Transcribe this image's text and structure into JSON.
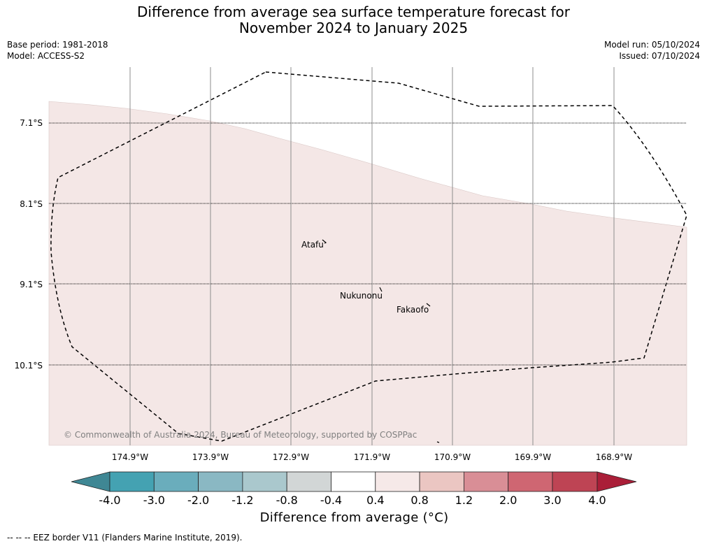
{
  "title": {
    "line1": "Difference from average sea surface temperature forecast for",
    "line2": "November 2024 to January 2025"
  },
  "meta_left": {
    "base_period": "Base period: 1981-2018",
    "model": "Model: ACCESS-S2"
  },
  "meta_right": {
    "model_run": "Model run: 05/10/2024",
    "issued": "Issued: 07/10/2024"
  },
  "map": {
    "latitudes": [
      "7.1°S",
      "8.1°S",
      "9.1°S",
      "10.1°S"
    ],
    "longitudes": [
      "174.9°W",
      "173.9°W",
      "172.9°W",
      "171.9°W",
      "170.9°W",
      "169.9°W",
      "168.9°W"
    ],
    "islands": {
      "atafu": "Atafu",
      "nukunonu": "Nukunonu",
      "fakaofo": "Fakaofo"
    },
    "copyright": "© Commonwealth of Australia 2024, Bureau of Meteorology, supported by COSPPac",
    "shading_color": "#f4e7e6",
    "shading_category": "0.4 to 0.8"
  },
  "colorbar": {
    "tick_labels": [
      "-4.0",
      "-3.0",
      "-2.0",
      "-1.2",
      "-0.8",
      "-0.4",
      "0.4",
      "0.8",
      "1.2",
      "2.0",
      "3.0",
      "4.0"
    ],
    "colors": [
      "#3f8794",
      "#44a2b2",
      "#6aadbc",
      "#8ab8c3",
      "#aac8cd",
      "#d2d6d6",
      "#ffffff",
      "#f6e9e8",
      "#ebc6c2",
      "#d98e96",
      "#cf6672",
      "#be4454",
      "#aa1e38"
    ],
    "label": "Difference from average (°C)"
  },
  "footer": "--  --  -- EEZ border V11 (Flanders Marine Institute, 2019)."
}
